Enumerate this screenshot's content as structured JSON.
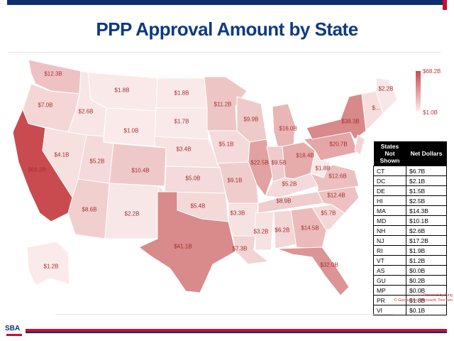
{
  "title": "PPP Approval Amount by State",
  "legend": {
    "max": "$68.2B",
    "min": "$1.0B"
  },
  "states": [
    {
      "id": "WA",
      "value": "$12.3B",
      "fill": "#eec2c3"
    },
    {
      "id": "OR",
      "value": "$7.0B",
      "fill": "#f4d6d6"
    },
    {
      "id": "CA",
      "value": "$68.2B",
      "fill": "#c94b4f"
    },
    {
      "id": "NV",
      "value": "$4.1B",
      "fill": "#f6e0e0"
    },
    {
      "id": "ID",
      "value": "$2.6B",
      "fill": "#f8e6e6"
    },
    {
      "id": "MT",
      "value": "$1.8B",
      "fill": "#f9e9e9"
    },
    {
      "id": "WY",
      "value": "$1.0B",
      "fill": "#faeaea"
    },
    {
      "id": "UT",
      "value": "$5.2B",
      "fill": "#f4dada"
    },
    {
      "id": "AZ",
      "value": "$8.6B",
      "fill": "#f1cfcf"
    },
    {
      "id": "CO",
      "value": "$10.4B",
      "fill": "#efc9c9"
    },
    {
      "id": "NM",
      "value": "$2.2B",
      "fill": "#f8e7e7"
    },
    {
      "id": "ND",
      "value": "$1.8B",
      "fill": "#f9e9e9"
    },
    {
      "id": "SD",
      "value": "$1.7B",
      "fill": "#f9e9e9"
    },
    {
      "id": "NE",
      "value": "$3.4B",
      "fill": "#f7e2e2"
    },
    {
      "id": "KS",
      "value": "$5.0B",
      "fill": "#f4dada"
    },
    {
      "id": "OK",
      "value": "$5.4B",
      "fill": "#f4d9d9"
    },
    {
      "id": "TX",
      "value": "$41.1B",
      "fill": "#d98a8b"
    },
    {
      "id": "MN",
      "value": "$11.2B",
      "fill": "#eec5c5"
    },
    {
      "id": "IA",
      "value": "$5.1B",
      "fill": "#f4dada"
    },
    {
      "id": "MO",
      "value": "$9.1B",
      "fill": "#f0cdcd"
    },
    {
      "id": "AR",
      "value": "$3.3B",
      "fill": "#f7e2e2"
    },
    {
      "id": "LA",
      "value": "$7.3B",
      "fill": "#f2d3d3"
    },
    {
      "id": "WI",
      "value": "$9.9B",
      "fill": "#efcaca"
    },
    {
      "id": "IL",
      "value": "$22.5B",
      "fill": "#e2a2a2"
    },
    {
      "id": "MI",
      "value": "$16.0B",
      "fill": "#e9b5b5"
    },
    {
      "id": "IN",
      "value": "$9.5B",
      "fill": "#f0cbcb"
    },
    {
      "id": "OH",
      "value": "$18.4B",
      "fill": "#e6acac"
    },
    {
      "id": "KY",
      "value": "$5.2B",
      "fill": "#f4dada"
    },
    {
      "id": "TN",
      "value": "$8.9B",
      "fill": "#f0cdcd"
    },
    {
      "id": "MS",
      "value": "$3.2B",
      "fill": "#f7e2e2"
    },
    {
      "id": "AL",
      "value": "$6.2B",
      "fill": "#f3d6d6"
    },
    {
      "id": "GA",
      "value": "$14.5B",
      "fill": "#ebbaba"
    },
    {
      "id": "FL",
      "value": "$32.0B",
      "fill": "#dc9494"
    },
    {
      "id": "SC",
      "value": "$5.7B",
      "fill": "#f4d8d8"
    },
    {
      "id": "NC",
      "value": "$12.4B",
      "fill": "#edc1c1"
    },
    {
      "id": "VA",
      "value": "$12.6B",
      "fill": "#edc0c0"
    },
    {
      "id": "WV",
      "value": "$1.8B",
      "fill": "#f9e9e9"
    },
    {
      "id": "PA",
      "value": "$20.7B",
      "fill": "#e4a6a6"
    },
    {
      "id": "NY",
      "value": "$38.3B",
      "fill": "#d8898a"
    },
    {
      "id": "ME",
      "value": "$2.2B",
      "fill": "#f8e7e7"
    },
    {
      "id": "NE_SMALL",
      "value": "$...",
      "fill": "#f6dede"
    },
    {
      "id": "AK",
      "value": "$1.2B",
      "fill": "#faeaea"
    }
  ],
  "table": {
    "header_state": "States Not Shown",
    "header_value": "Net Dollars",
    "rows": [
      {
        "state": "CT",
        "value": "$6.7B"
      },
      {
        "state": "DC",
        "value": "$2.1B"
      },
      {
        "state": "DE",
        "value": "$1.5B"
      },
      {
        "state": "HI",
        "value": "$2.5B"
      },
      {
        "state": "MA",
        "value": "$14.3B"
      },
      {
        "state": "MD",
        "value": "$10.1B"
      },
      {
        "state": "NH",
        "value": "$2.6B"
      },
      {
        "state": "NJ",
        "value": "$17.2B"
      },
      {
        "state": "RI",
        "value": "$1.9B"
      },
      {
        "state": "VT",
        "value": "$1.2B"
      },
      {
        "state": "AS",
        "value": "$0.0B"
      },
      {
        "state": "GU",
        "value": "$0.2B"
      },
      {
        "state": "MP",
        "value": "$0.0B"
      },
      {
        "state": "PR",
        "value": "$1.8B"
      },
      {
        "state": "VI",
        "value": "$0.1B"
      }
    ]
  },
  "attribution": {
    "line1": "Powered by Bing",
    "line2": "© GeoNames, Microsoft, TomTom"
  },
  "logo": "SBA"
}
